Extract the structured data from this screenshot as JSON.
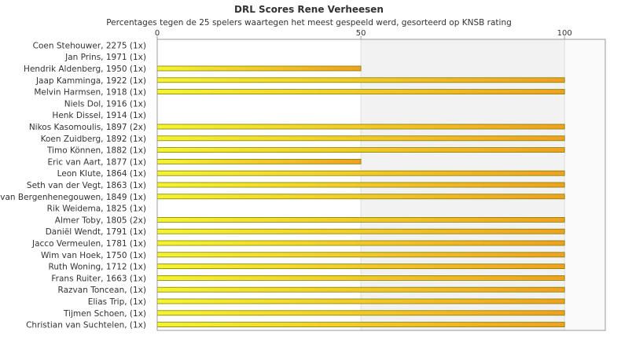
{
  "chart_data": {
    "type": "bar",
    "orientation": "horizontal",
    "title": "DRL Scores Rene Verheesen",
    "subtitle": "Percentages tegen de 25 spelers waartegen het meest gespeeld werd, gesorteerd op KNSB rating",
    "xlim": [
      0,
      110
    ],
    "xticks": [
      0,
      50,
      100
    ],
    "xtick_labels": [
      "0",
      "50",
      "100"
    ],
    "grid": true,
    "colors": {
      "bar_fill_start": "#f4f430",
      "bar_fill_end": "#f0a020",
      "bar_stroke": "#7f7f00",
      "band": "#f2f2f2",
      "band_edge": "#fafafa"
    },
    "categories": [
      "Coen Stehouwer, 2275 (1x)",
      "Jan Prins, 1971 (1x)",
      "Hendrik Aldenberg, 1950 (1x)",
      "Jaap Kamminga, 1922 (1x)",
      "Melvin Harmsen, 1918 (1x)",
      "Niels Dol, 1916 (1x)",
      "Henk Dissel, 1914 (1x)",
      "Nikos Kasomoulis, 1897 (2x)",
      "Koen Zuidberg, 1892 (1x)",
      "Timo Können, 1882 (1x)",
      "Eric van Aart, 1877 (1x)",
      "Leon Klute, 1864 (1x)",
      "Seth van der Vegt, 1863 (1x)",
      "van Bergenhenegouwen, 1849 (1x)",
      "Rik Weidema, 1825 (1x)",
      "Almer Toby, 1805 (2x)",
      "Daniël Wendt, 1791 (1x)",
      "Jacco Vermeulen, 1781 (1x)",
      "Wim van Hoek, 1750 (1x)",
      "Ruth Woning, 1712 (1x)",
      "Frans Ruiter, 1663 (1x)",
      "Razvan Toncean,  (1x)",
      "Elias Trip,  (1x)",
      "Tijmen Schoen,  (1x)",
      "Christian van Suchtelen,  (1x)"
    ],
    "values": [
      0,
      0,
      50,
      100,
      100,
      0,
      0,
      100,
      100,
      100,
      50,
      100,
      100,
      100,
      0,
      100,
      100,
      100,
      100,
      100,
      100,
      100,
      100,
      100,
      100
    ]
  }
}
